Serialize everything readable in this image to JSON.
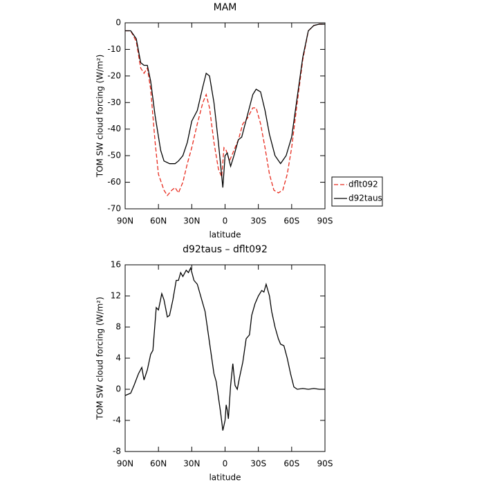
{
  "chart_data": [
    {
      "type": "line",
      "title": "MAM",
      "xlabel": "latitude",
      "ylabel": "TOM SW cloud forcing (W/m²)",
      "xlim": [
        90,
        -90
      ],
      "xticks": [
        {
          "value": 90,
          "label": "90N"
        },
        {
          "value": 60,
          "label": "60N"
        },
        {
          "value": 30,
          "label": "30N"
        },
        0,
        {
          "value": -30,
          "label": "30S"
        },
        {
          "value": -60,
          "label": "60S"
        },
        {
          "value": -90,
          "label": "90S"
        }
      ],
      "ylim": [
        -70,
        0
      ],
      "yticks": [
        0,
        -10,
        -20,
        -30,
        -40,
        -50,
        -60,
        -70
      ],
      "legend": "right",
      "series": [
        {
          "name": "dflt092",
          "color": "#e8291c",
          "dash": true,
          "x": [
            90,
            85,
            80,
            76,
            73,
            70,
            67,
            63,
            60,
            55,
            52,
            48,
            45,
            42,
            38,
            34,
            30,
            25,
            20,
            17,
            14,
            10,
            6,
            3,
            1,
            -1,
            -4,
            -8,
            -12,
            -16,
            -20,
            -25,
            -28,
            -32,
            -36,
            -40,
            -44,
            -48,
            -52,
            -56,
            -60,
            -65,
            -70,
            -75,
            -80,
            -85,
            -90
          ],
          "values": [
            -3,
            -3,
            -7,
            -17,
            -19,
            -17,
            -25,
            -45,
            -57,
            -63,
            -65,
            -63,
            -62,
            -64,
            -60,
            -53,
            -47,
            -38,
            -30,
            -27,
            -32,
            -45,
            -55,
            -58,
            -47,
            -48,
            -52,
            -48,
            -44,
            -38,
            -36,
            -32,
            -32,
            -38,
            -47,
            -57,
            -63,
            -64,
            -63,
            -57,
            -47,
            -30,
            -14,
            -3,
            -1,
            -0.5,
            -0.5
          ]
        },
        {
          "name": "d92taus",
          "color": "#000000",
          "dash": false,
          "x": [
            90,
            85,
            80,
            76,
            73,
            70,
            67,
            63,
            58,
            55,
            50,
            45,
            42,
            38,
            34,
            30,
            25,
            20,
            17,
            14,
            10,
            6,
            2,
            0,
            -2,
            -5,
            -8,
            -12,
            -15,
            -20,
            -25,
            -28,
            -32,
            -36,
            -40,
            -45,
            -50,
            -55,
            -60,
            -65,
            -70,
            -75,
            -80,
            -85,
            -90
          ],
          "values": [
            -3,
            -3,
            -6,
            -15,
            -16,
            -16,
            -22,
            -35,
            -48,
            -52,
            -53,
            -53,
            -52,
            -50,
            -45,
            -37,
            -33,
            -24,
            -19,
            -20,
            -30,
            -45,
            -62,
            -50,
            -49,
            -54,
            -50,
            -44,
            -43,
            -35,
            -27,
            -25,
            -26,
            -33,
            -42,
            -50,
            -53,
            -50,
            -43,
            -28,
            -13,
            -3,
            -1,
            -0.5,
            -0.5
          ]
        }
      ]
    },
    {
      "type": "line",
      "title": "d92taus – dflt092",
      "xlabel": "latitude",
      "ylabel": "TOM SW cloud forcing (W/m²)",
      "xlim": [
        90,
        -90
      ],
      "xticks": [
        {
          "value": 90,
          "label": "90N"
        },
        {
          "value": 60,
          "label": "60N"
        },
        {
          "value": 30,
          "label": "30N"
        },
        0,
        {
          "value": -30,
          "label": "30S"
        },
        {
          "value": -60,
          "label": "60S"
        },
        {
          "value": -90,
          "label": "90S"
        }
      ],
      "ylim": [
        -8,
        16
      ],
      "yticks": [
        -8,
        -4,
        0,
        4,
        8,
        12,
        16
      ],
      "series": [
        {
          "color": "#000000",
          "dash": false,
          "x": [
            90,
            85,
            82,
            78,
            75,
            73,
            70,
            67,
            65,
            62,
            60,
            57,
            55,
            52,
            50,
            47,
            44,
            42,
            40,
            38,
            35,
            33,
            31,
            28,
            25,
            22,
            18,
            15,
            12,
            10,
            8,
            6,
            4,
            2,
            0,
            -1,
            -2,
            -3,
            -5,
            -7,
            -9,
            -11,
            -13,
            -16,
            -19,
            -22,
            -24,
            -27,
            -30,
            -33,
            -35,
            -37,
            -40,
            -42,
            -45,
            -48,
            -50,
            -53,
            -56,
            -59,
            -62,
            -65,
            -70,
            -75,
            -80,
            -85,
            -90
          ],
          "values": [
            -0.8,
            -0.5,
            0.5,
            2,
            2.8,
            1.2,
            2.5,
            4.5,
            5,
            10.5,
            10.2,
            12.3,
            11.5,
            9.3,
            9.5,
            11.5,
            14,
            14,
            15,
            14.5,
            15.3,
            15,
            15.6,
            14,
            13.5,
            12,
            10,
            7,
            4,
            2,
            1,
            -1,
            -3,
            -5.3,
            -4,
            -2,
            -2.7,
            -3.8,
            0.5,
            3.3,
            0.5,
            0,
            1.5,
            3.5,
            6.5,
            7,
            9.5,
            11,
            12,
            12.7,
            12.5,
            13.5,
            12,
            10,
            8,
            6.5,
            5.8,
            5.6,
            4,
            2,
            0.3,
            0,
            0.1,
            0,
            0.1,
            0,
            0
          ]
        }
      ]
    }
  ]
}
